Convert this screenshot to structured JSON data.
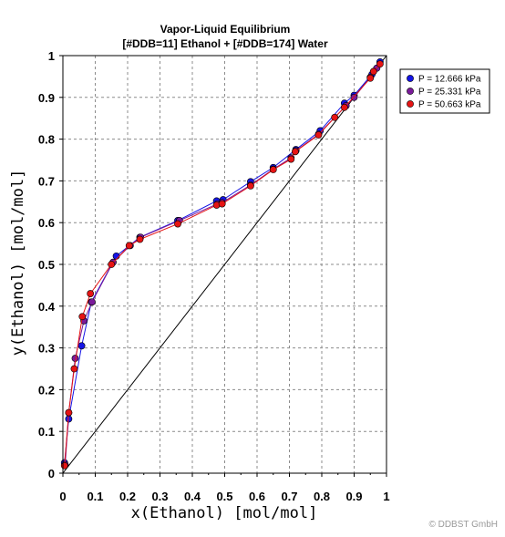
{
  "chart_data": {
    "type": "line",
    "title": "Vapor-Liquid Equilibrium",
    "subtitle": "[#DDB=11] Ethanol + [#DDB=174] Water",
    "xlabel": "x(Ethanol) [mol/mol]",
    "ylabel": "y(Ethanol) [mol/mol]",
    "xlim": [
      0,
      1
    ],
    "ylim": [
      0,
      1
    ],
    "xticks": [
      "0",
      "0.1",
      "0.2",
      "0.3",
      "0.4",
      "0.5",
      "0.6",
      "0.7",
      "0.8",
      "0.9",
      "1"
    ],
    "yticks": [
      "0",
      "0.1",
      "0.2",
      "0.3",
      "0.4",
      "0.5",
      "0.6",
      "0.7",
      "0.8",
      "0.9",
      "1"
    ],
    "grid": true,
    "diagonal": true,
    "legend_position": "right",
    "series": [
      {
        "name": "P = 12.666 kPa",
        "color": "#1414e6",
        "x": [
          0.005,
          0.018,
          0.058,
          0.088,
          0.165,
          0.238,
          0.355,
          0.475,
          0.495,
          0.58,
          0.65,
          0.72,
          0.795,
          0.87,
          0.9,
          0.955,
          0.98
        ],
        "y": [
          0.025,
          0.13,
          0.305,
          0.41,
          0.52,
          0.565,
          0.605,
          0.652,
          0.655,
          0.698,
          0.732,
          0.775,
          0.82,
          0.886,
          0.905,
          0.955,
          0.985
        ]
      },
      {
        "name": "P = 25.331 kPa",
        "color": "#7a1a9a",
        "x": [
          0.007,
          0.018,
          0.038,
          0.065,
          0.09,
          0.155,
          0.208,
          0.24,
          0.36,
          0.478,
          0.492,
          0.58,
          0.65,
          0.705,
          0.72,
          0.79,
          0.875,
          0.9,
          0.95,
          0.97
        ],
        "y": [
          0.02,
          0.145,
          0.275,
          0.365,
          0.41,
          0.505,
          0.545,
          0.565,
          0.605,
          0.645,
          0.648,
          0.69,
          0.728,
          0.755,
          0.772,
          0.812,
          0.88,
          0.9,
          0.948,
          0.97
        ]
      },
      {
        "name": "P = 50.663 kPa",
        "color": "#e61414",
        "x": [
          0.005,
          0.018,
          0.035,
          0.06,
          0.085,
          0.15,
          0.205,
          0.238,
          0.355,
          0.475,
          0.492,
          0.58,
          0.65,
          0.705,
          0.718,
          0.79,
          0.84,
          0.87,
          0.95,
          0.96,
          0.98
        ],
        "y": [
          0.018,
          0.145,
          0.25,
          0.375,
          0.43,
          0.5,
          0.545,
          0.56,
          0.597,
          0.642,
          0.645,
          0.688,
          0.727,
          0.752,
          0.77,
          0.81,
          0.852,
          0.876,
          0.946,
          0.962,
          0.98
        ]
      }
    ]
  },
  "watermark": "© DDBST GmbH"
}
